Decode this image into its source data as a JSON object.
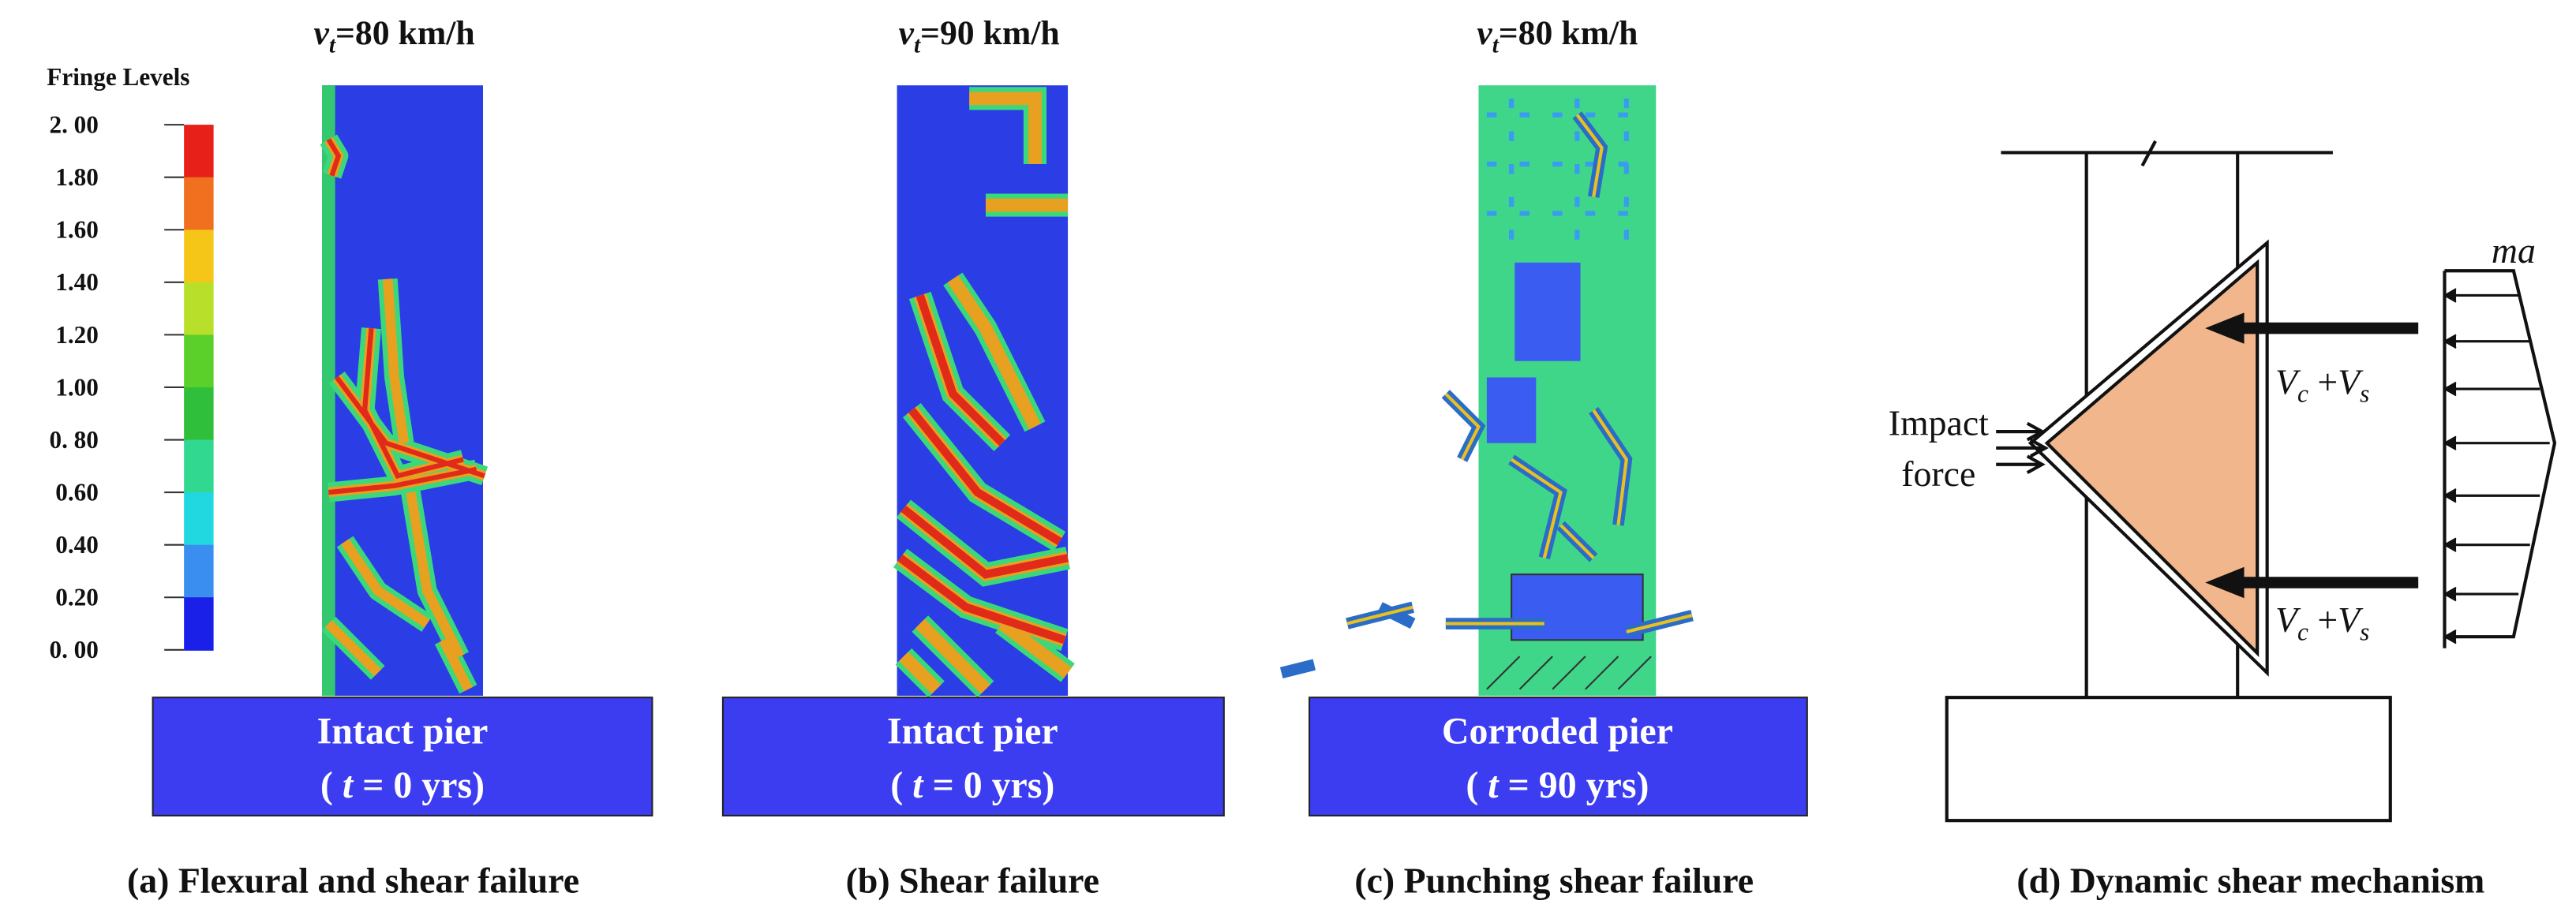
{
  "colorbar": {
    "title": "Fringe Levels",
    "labels": [
      "2. 00",
      "1.80",
      "1.60",
      "1.40",
      "1.20",
      "1.00",
      "0. 80",
      "0.60",
      "0.40",
      "0.20",
      "0. 00"
    ]
  },
  "panels": [
    {
      "speed": {
        "symbol": "v",
        "subscript": "t",
        "text": "=80 km/h"
      },
      "label": {
        "line1": "Intact pier",
        "open": "( ",
        "symbol": "t",
        "rest": " = 0 yrs)"
      },
      "caption": "(a) Flexural and shear failure"
    },
    {
      "speed": {
        "symbol": "v",
        "subscript": "t",
        "text": "=90 km/h"
      },
      "label": {
        "line1": "Intact pier",
        "open": "( ",
        "symbol": "t",
        "rest": " = 0 yrs)"
      },
      "caption": "(b) Shear failure"
    },
    {
      "speed": {
        "symbol": "v",
        "subscript": "t",
        "text": "=80 km/h"
      },
      "label": {
        "line1": "Corroded pier",
        "open": "( ",
        "symbol": "t",
        "rest": " = 90 yrs)"
      },
      "caption": "(c) Punching shear failure"
    }
  ],
  "mechanism": {
    "caption": "(d) Dynamic shear mechanism",
    "impact": [
      "Impact",
      "force"
    ],
    "inertia": "ma",
    "resistance": [
      {
        "a": "V",
        "a_sub": "c",
        "op": " +",
        "b": "V",
        "b_sub": "s"
      },
      {
        "a": "V",
        "a_sub": "c",
        "op": " +",
        "b": "V",
        "b_sub": "s"
      }
    ]
  }
}
